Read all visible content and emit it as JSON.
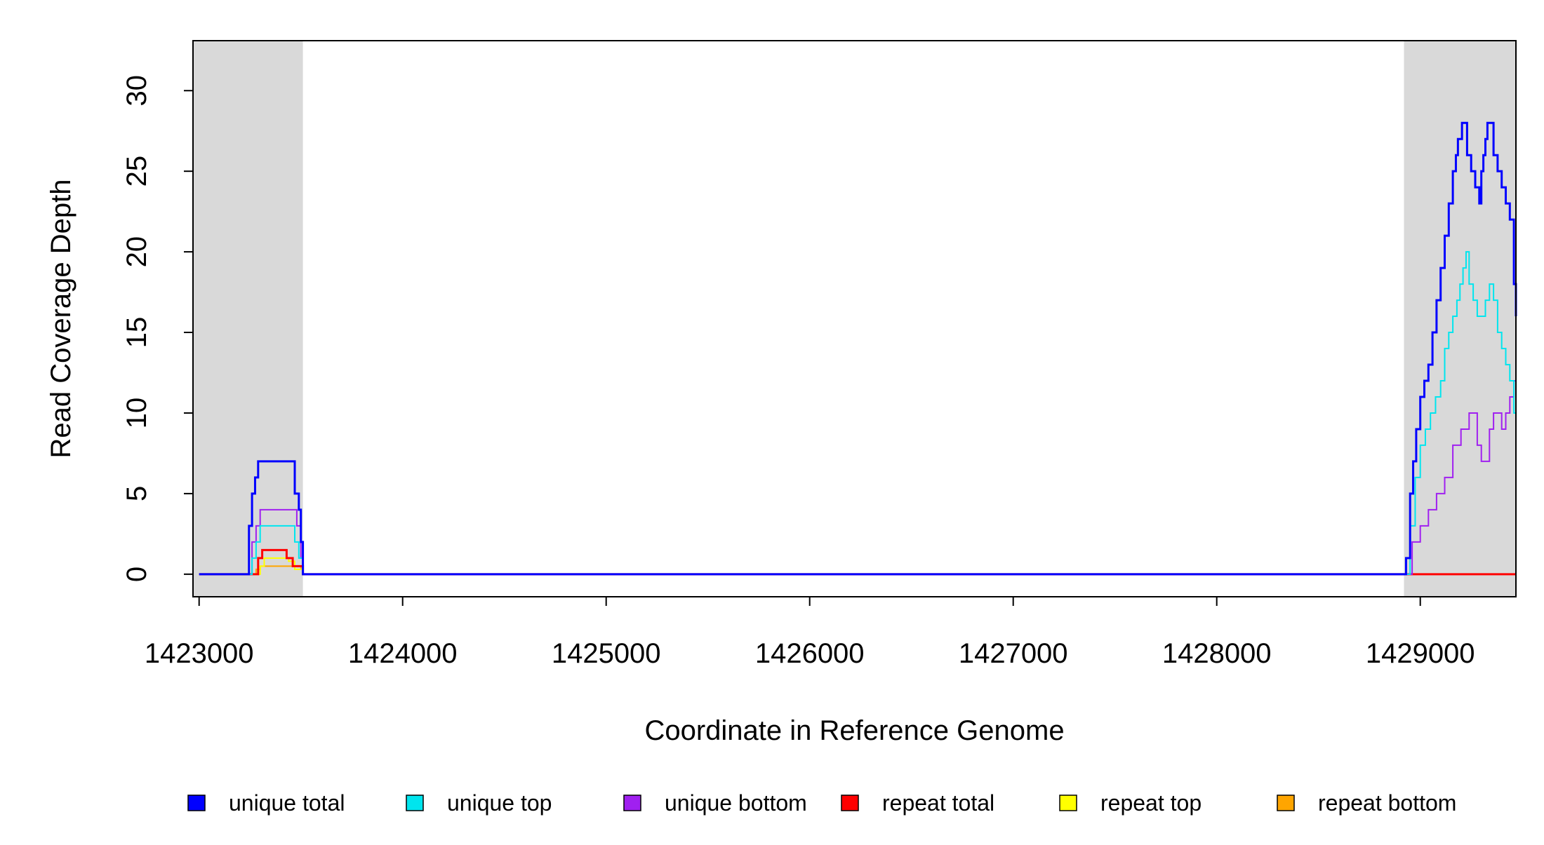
{
  "chart_data": {
    "type": "line",
    "title": "",
    "xlabel": "Coordinate in Reference Genome",
    "ylabel": "Read Coverage Depth",
    "xlim": [
      1422970,
      1429470
    ],
    "ylim": [
      0,
      30
    ],
    "x_ticks": [
      1423000,
      1424000,
      1425000,
      1426000,
      1427000,
      1428000,
      1429000
    ],
    "x_tick_labels": [
      "1423000",
      "1424000",
      "1425000",
      "1426000",
      "1427000",
      "1428000",
      "1429000"
    ],
    "y_ticks": [
      0,
      5,
      10,
      15,
      20,
      25,
      30
    ],
    "y_tick_labels": [
      "0",
      "5",
      "10",
      "15",
      "20",
      "25",
      "30"
    ],
    "grid": false,
    "legend_position": "bottom",
    "shaded_regions": [
      {
        "x0": 1422970,
        "x1": 1423510,
        "color": "#d9d9d9"
      },
      {
        "x0": 1428920,
        "x1": 1429470,
        "color": "#d9d9d9"
      }
    ],
    "series": [
      {
        "name": "unique total",
        "color": "#0000ff",
        "width": 3,
        "x": [
          1423000,
          1423230,
          1423245,
          1423260,
          1423275,
          1423290,
          1423310,
          1423330,
          1423350,
          1423400,
          1423450,
          1423470,
          1423490,
          1423500,
          1423510,
          1428900,
          1428930,
          1428950,
          1428965,
          1428980,
          1429000,
          1429020,
          1429040,
          1429060,
          1429080,
          1429100,
          1429120,
          1429140,
          1429160,
          1429175,
          1429185,
          1429195,
          1429205,
          1429215,
          1429230,
          1429250,
          1429270,
          1429290,
          1429300,
          1429310,
          1429320,
          1429330,
          1429340,
          1429360,
          1429380,
          1429400,
          1429420,
          1429440,
          1429460,
          1429470
        ],
        "y": [
          0,
          0,
          3,
          5,
          6,
          7,
          7,
          7,
          7,
          7,
          7,
          5,
          4,
          2,
          0,
          0,
          1,
          5,
          7,
          9,
          11,
          12,
          13,
          15,
          17,
          19,
          21,
          23,
          25,
          26,
          27,
          27,
          28,
          28,
          26,
          25,
          24,
          23,
          25,
          26,
          27,
          28,
          28,
          26,
          25,
          24,
          23,
          22,
          18,
          16
        ]
      },
      {
        "name": "unique top",
        "color": "#00e5ee",
        "width": 2,
        "x": [
          1423000,
          1423240,
          1423260,
          1423280,
          1423300,
          1423350,
          1423400,
          1423450,
          1423470,
          1423490,
          1423510,
          1428920,
          1428950,
          1428975,
          1429000,
          1429025,
          1429050,
          1429075,
          1429100,
          1429120,
          1429140,
          1429160,
          1429180,
          1429195,
          1429210,
          1429225,
          1429240,
          1429260,
          1429280,
          1429300,
          1429320,
          1429340,
          1429360,
          1429380,
          1429400,
          1429420,
          1429440,
          1429460,
          1429470
        ],
        "y": [
          0,
          0,
          1,
          2,
          3,
          3,
          3,
          3,
          2,
          1,
          0,
          0,
          3,
          6,
          8,
          9,
          10,
          11,
          12,
          14,
          15,
          16,
          17,
          18,
          19,
          20,
          18,
          17,
          16,
          16,
          17,
          18,
          17,
          15,
          14,
          13,
          12,
          10,
          7
        ]
      },
      {
        "name": "unique bottom",
        "color": "#a020f0",
        "width": 2,
        "x": [
          1423000,
          1423240,
          1423260,
          1423280,
          1423300,
          1423350,
          1423400,
          1423450,
          1423480,
          1423500,
          1423510,
          1428930,
          1428960,
          1429000,
          1429040,
          1429080,
          1429120,
          1429160,
          1429200,
          1429240,
          1429260,
          1429280,
          1429300,
          1429320,
          1429340,
          1429360,
          1429380,
          1429400,
          1429420,
          1429440,
          1429460,
          1429470
        ],
        "y": [
          0,
          0,
          2,
          3,
          4,
          4,
          4,
          4,
          3,
          1,
          0,
          0,
          2,
          3,
          4,
          5,
          6,
          8,
          9,
          10,
          10,
          8,
          7,
          7,
          9,
          10,
          10,
          9,
          10,
          11,
          12,
          10
        ]
      },
      {
        "name": "repeat total",
        "color": "#ff0000",
        "width": 3,
        "x": [
          1423000,
          1423270,
          1423290,
          1423310,
          1423400,
          1423430,
          1423460,
          1423510,
          1429470
        ],
        "y": [
          0,
          0,
          1,
          1.5,
          1.5,
          1,
          0.5,
          0,
          0
        ]
      },
      {
        "name": "repeat top",
        "color": "#ffff00",
        "width": 2,
        "x": [
          1423000,
          1423280,
          1423300,
          1423320,
          1423400,
          1423440,
          1423470,
          1423510,
          1429470
        ],
        "y": [
          0,
          0,
          0.5,
          1,
          1,
          0.8,
          0.3,
          0,
          0
        ]
      },
      {
        "name": "repeat bottom",
        "color": "#ffa500",
        "width": 2,
        "x": [
          1423000,
          1423260,
          1423280,
          1423300,
          1423450,
          1423500,
          1423510,
          1429470
        ],
        "y": [
          0,
          0,
          0.3,
          0.5,
          0.5,
          0.3,
          0,
          0
        ]
      }
    ]
  }
}
